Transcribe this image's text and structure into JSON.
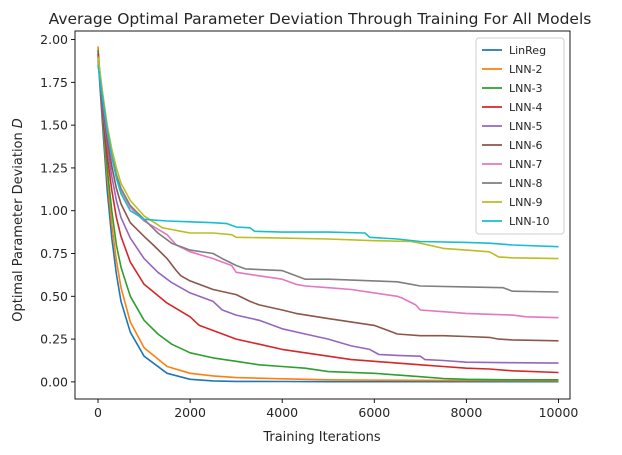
{
  "chart_data": {
    "type": "line",
    "title": "Average Optimal Parameter Deviation Through Training For All Models",
    "xlabel": "Training Iterations",
    "ylabel": "Optimal Parameter Deviation D",
    "ylabel_main": "Optimal Parameter Deviation",
    "ylabel_symbol": "D",
    "xlim": [
      -500,
      10250
    ],
    "ylim": [
      -0.1,
      2.05
    ],
    "xticks": [
      0,
      2000,
      4000,
      6000,
      8000,
      10000
    ],
    "xtick_labels": [
      "0",
      "2000",
      "4000",
      "6000",
      "8000",
      "10000"
    ],
    "yticks": [
      0.0,
      0.25,
      0.5,
      0.75,
      1.0,
      1.25,
      1.5,
      1.75,
      2.0
    ],
    "ytick_labels": [
      "0.00",
      "0.25",
      "0.50",
      "0.75",
      "1.00",
      "1.25",
      "1.50",
      "1.75",
      "2.00"
    ],
    "grid": false,
    "legend_position": "top-right",
    "series": [
      {
        "name": "LinReg",
        "color": "#1f77b4",
        "x": [
          0,
          100,
          200,
          300,
          400,
          500,
          700,
          1000,
          1500,
          2000,
          2500,
          3000,
          4000,
          5000,
          6000,
          8000,
          10000
        ],
        "y": [
          1.9,
          1.5,
          1.12,
          0.84,
          0.63,
          0.47,
          0.29,
          0.15,
          0.05,
          0.015,
          0.006,
          0.003,
          0.002,
          0.001,
          0.001,
          0.001,
          0.001
        ]
      },
      {
        "name": "LNN-2",
        "color": "#ff7f0e",
        "x": [
          0,
          100,
          200,
          300,
          400,
          500,
          700,
          1000,
          1500,
          2000,
          2500,
          3000,
          4000,
          5000,
          6000,
          8000,
          10000
        ],
        "y": [
          1.96,
          1.55,
          1.2,
          0.92,
          0.71,
          0.55,
          0.35,
          0.2,
          0.09,
          0.05,
          0.035,
          0.025,
          0.018,
          0.012,
          0.01,
          0.008,
          0.007
        ]
      },
      {
        "name": "LNN-3",
        "color": "#2ca02c",
        "x": [
          0,
          100,
          200,
          300,
          400,
          500,
          700,
          1000,
          1300,
          1600,
          2000,
          2500,
          3000,
          3500,
          4000,
          4500,
          5000,
          6000,
          7000,
          7500,
          8000,
          9000,
          10000
        ],
        "y": [
          1.94,
          1.56,
          1.25,
          1.0,
          0.8,
          0.67,
          0.5,
          0.36,
          0.28,
          0.22,
          0.17,
          0.14,
          0.12,
          0.1,
          0.09,
          0.08,
          0.06,
          0.05,
          0.03,
          0.02,
          0.015,
          0.012,
          0.012
        ]
      },
      {
        "name": "LNN-4",
        "color": "#d62728",
        "x": [
          0,
          100,
          200,
          300,
          400,
          500,
          700,
          1000,
          1500,
          2000,
          2200,
          2500,
          3000,
          3500,
          4000,
          4500,
          5000,
          5500,
          6000,
          6500,
          7000,
          7500,
          8000,
          8500,
          9000,
          10000
        ],
        "y": [
          1.92,
          1.58,
          1.32,
          1.12,
          0.96,
          0.85,
          0.7,
          0.57,
          0.46,
          0.38,
          0.33,
          0.3,
          0.25,
          0.22,
          0.19,
          0.17,
          0.15,
          0.13,
          0.12,
          0.11,
          0.1,
          0.09,
          0.08,
          0.075,
          0.065,
          0.055
        ]
      },
      {
        "name": "LNN-5",
        "color": "#9467bd",
        "x": [
          0,
          100,
          200,
          300,
          400,
          500,
          700,
          1000,
          1300,
          1600,
          2000,
          2500,
          2700,
          3000,
          3500,
          4000,
          4500,
          5000,
          5500,
          5900,
          6100,
          6500,
          7000,
          7100,
          7500,
          8000,
          9000,
          10000
        ],
        "y": [
          1.88,
          1.6,
          1.38,
          1.2,
          1.06,
          0.96,
          0.84,
          0.72,
          0.64,
          0.58,
          0.52,
          0.47,
          0.42,
          0.39,
          0.36,
          0.31,
          0.28,
          0.25,
          0.21,
          0.19,
          0.16,
          0.155,
          0.15,
          0.13,
          0.125,
          0.115,
          0.112,
          0.11
        ]
      },
      {
        "name": "LNN-6",
        "color": "#8c564b",
        "x": [
          0,
          100,
          200,
          300,
          400,
          500,
          700,
          1000,
          1200,
          1500,
          1700,
          1800,
          2000,
          2500,
          3000,
          3300,
          3500,
          4000,
          4300,
          5000,
          6000,
          6300,
          6500,
          7000,
          7500,
          8000,
          8500,
          8700,
          9000,
          10000
        ],
        "y": [
          1.9,
          1.63,
          1.42,
          1.26,
          1.13,
          1.04,
          0.93,
          0.85,
          0.8,
          0.72,
          0.65,
          0.62,
          0.59,
          0.54,
          0.51,
          0.47,
          0.45,
          0.42,
          0.4,
          0.37,
          0.33,
          0.3,
          0.28,
          0.27,
          0.27,
          0.265,
          0.26,
          0.25,
          0.245,
          0.24
        ]
      },
      {
        "name": "LNN-7",
        "color": "#e377c2",
        "x": [
          0,
          100,
          200,
          300,
          400,
          500,
          700,
          1000,
          1500,
          1700,
          2000,
          2500,
          2900,
          3000,
          3500,
          4000,
          4300,
          4500,
          5000,
          5500,
          6000,
          6500,
          6600,
          6900,
          7000,
          7500,
          8000,
          8500,
          9000,
          9300,
          10000
        ],
        "y": [
          1.9,
          1.66,
          1.46,
          1.31,
          1.2,
          1.12,
          1.02,
          0.94,
          0.86,
          0.8,
          0.76,
          0.72,
          0.68,
          0.64,
          0.62,
          0.6,
          0.57,
          0.56,
          0.55,
          0.54,
          0.52,
          0.5,
          0.49,
          0.45,
          0.42,
          0.41,
          0.4,
          0.395,
          0.39,
          0.38,
          0.375
        ]
      },
      {
        "name": "LNN-8",
        "color": "#7f7f7f",
        "x": [
          0,
          100,
          200,
          300,
          400,
          500,
          700,
          1000,
          1300,
          1600,
          2000,
          2500,
          2700,
          3000,
          3200,
          4000,
          4300,
          4500,
          5000,
          6000,
          6500,
          6800,
          7000,
          8000,
          8800,
          9000,
          10000
        ],
        "y": [
          1.9,
          1.68,
          1.48,
          1.33,
          1.21,
          1.13,
          1.03,
          0.95,
          0.87,
          0.81,
          0.77,
          0.75,
          0.72,
          0.68,
          0.66,
          0.65,
          0.62,
          0.6,
          0.6,
          0.59,
          0.585,
          0.57,
          0.56,
          0.555,
          0.55,
          0.53,
          0.525
        ]
      },
      {
        "name": "LNN-9",
        "color": "#bcbd22",
        "x": [
          0,
          100,
          200,
          300,
          400,
          500,
          700,
          1000,
          1400,
          1600,
          1800,
          2000,
          2500,
          2900,
          3000,
          4000,
          5000,
          6000,
          6800,
          7000,
          7500,
          8000,
          8500,
          8700,
          9000,
          10000
        ],
        "y": [
          1.9,
          1.69,
          1.5,
          1.36,
          1.25,
          1.16,
          1.06,
          0.97,
          0.9,
          0.89,
          0.88,
          0.87,
          0.87,
          0.86,
          0.845,
          0.84,
          0.835,
          0.825,
          0.82,
          0.81,
          0.78,
          0.77,
          0.76,
          0.73,
          0.725,
          0.72
        ]
      },
      {
        "name": "LNN-10",
        "color": "#17becf",
        "x": [
          0,
          100,
          200,
          300,
          400,
          500,
          700,
          1000,
          1500,
          2000,
          2500,
          2800,
          3000,
          3300,
          3400,
          4000,
          5000,
          5800,
          5900,
          6500,
          7000,
          8000,
          8500,
          9000,
          10000
        ],
        "y": [
          1.85,
          1.66,
          1.47,
          1.32,
          1.19,
          1.1,
          1.0,
          0.95,
          0.94,
          0.935,
          0.93,
          0.925,
          0.905,
          0.9,
          0.88,
          0.875,
          0.875,
          0.87,
          0.845,
          0.835,
          0.82,
          0.815,
          0.81,
          0.8,
          0.79
        ]
      }
    ]
  }
}
